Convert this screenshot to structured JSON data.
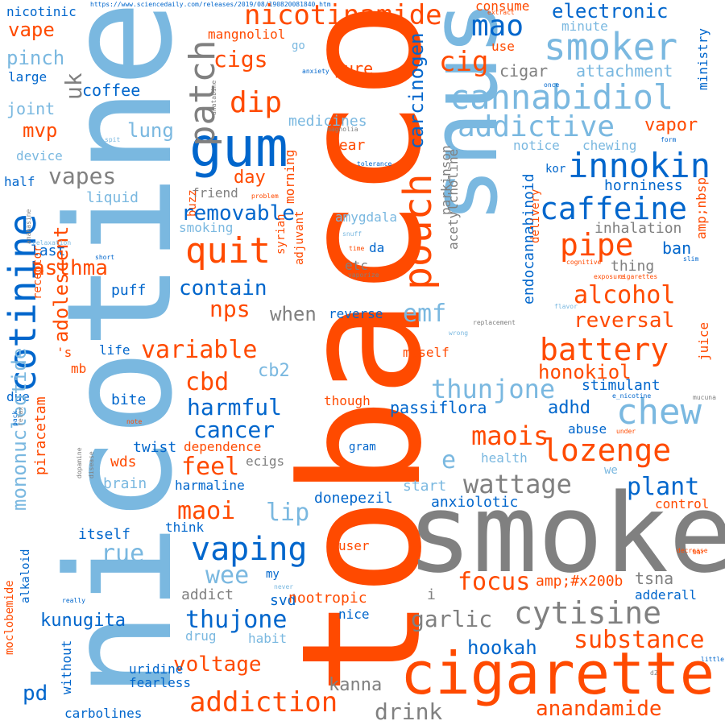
{
  "words": [
    {
      "text": "https://www.sciencedaily.com/releases/2019/08/190820081840.htm",
      "color": "#0066cc",
      "rotate": 0
    },
    {
      "text": "nicotine",
      "color": "#7ab8e0",
      "rotate": -90
    },
    {
      "text": "tobacco",
      "color": "#ff4a00",
      "rotate": -90
    },
    {
      "text": "smoke",
      "color": "#808080",
      "rotate": 0
    },
    {
      "text": "snus",
      "color": "#7ab8e0",
      "rotate": -90
    },
    {
      "text": "cigarette",
      "color": "#ff4a00",
      "rotate": 0
    },
    {
      "text": "gum",
      "color": "#0066cc",
      "rotate": 0
    },
    {
      "text": "nicotinamide",
      "color": "#ff4a00",
      "rotate": 0
    },
    {
      "text": "smoker",
      "color": "#7ab8e0",
      "rotate": 0
    },
    {
      "text": "cannabidiol",
      "color": "#7ab8e0",
      "rotate": 0
    },
    {
      "text": "addictive",
      "color": "#7ab8e0",
      "rotate": 0
    },
    {
      "text": "innokin",
      "color": "#0066cc",
      "rotate": 0
    },
    {
      "text": "caffeine",
      "color": "#0066cc",
      "rotate": 0
    },
    {
      "text": "pouch",
      "color": "#ff4a00",
      "rotate": -90
    },
    {
      "text": "cotinine",
      "color": "#0066cc",
      "rotate": -90
    },
    {
      "text": "pipe",
      "color": "#ff4a00",
      "rotate": 0
    },
    {
      "text": "quit",
      "color": "#ff4a00",
      "rotate": 0
    },
    {
      "text": "patch",
      "color": "#808080",
      "rotate": -90
    },
    {
      "text": "mao",
      "color": "#0066cc",
      "rotate": 0
    },
    {
      "text": "cig",
      "color": "#ff4a00",
      "rotate": 0
    },
    {
      "text": "dip",
      "color": "#ff4a00",
      "rotate": 0
    },
    {
      "text": "cigs",
      "color": "#ff4a00",
      "rotate": 0
    },
    {
      "text": "vape",
      "color": "#ff4a00",
      "rotate": 0
    },
    {
      "text": "nicotinic",
      "color": "#0066cc",
      "rotate": 0
    },
    {
      "text": "consume",
      "color": "#ff4a00",
      "rotate": 0
    },
    {
      "text": "electronic",
      "color": "#0066cc",
      "rotate": 0
    },
    {
      "text": "minute",
      "color": "#7ab8e0",
      "rotate": 0
    },
    {
      "text": "mangnoliol",
      "color": "#ff4a00",
      "rotate": 0
    },
    {
      "text": "carcinogen",
      "color": "#0066cc",
      "rotate": -90
    },
    {
      "text": "ministry",
      "color": "#0066cc",
      "rotate": -90
    },
    {
      "text": "attachment",
      "color": "#7ab8e0",
      "rotate": 0
    },
    {
      "text": "cigar",
      "color": "#808080",
      "rotate": 0
    },
    {
      "text": "pure",
      "color": "#ff4a00",
      "rotate": 0
    },
    {
      "text": "use",
      "color": "#ff4a00",
      "rotate": 0
    },
    {
      "text": "go",
      "color": "#7ab8e0",
      "rotate": 0
    },
    {
      "text": "pinch",
      "color": "#7ab8e0",
      "rotate": 0
    },
    {
      "text": "large",
      "color": "#0066cc",
      "rotate": 0
    },
    {
      "text": "uk",
      "color": "#808080",
      "rotate": -90
    },
    {
      "text": "coffee",
      "color": "#0066cc",
      "rotate": 0
    },
    {
      "text": "joint",
      "color": "#7ab8e0",
      "rotate": 0
    },
    {
      "text": "lung",
      "color": "#7ab8e0",
      "rotate": 0
    },
    {
      "text": "medicines",
      "color": "#7ab8e0",
      "rotate": 0
    },
    {
      "text": "parkinson",
      "color": "#808080",
      "rotate": -90
    },
    {
      "text": "vapor",
      "color": "#ff4a00",
      "rotate": 0
    },
    {
      "text": "notice",
      "color": "#7ab8e0",
      "rotate": 0
    },
    {
      "text": "chewing",
      "color": "#7ab8e0",
      "rotate": 0
    },
    {
      "text": "mvp",
      "color": "#ff4a00",
      "rotate": 0
    },
    {
      "text": "year",
      "color": "#ff4a00",
      "rotate": 0
    },
    {
      "text": "device",
      "color": "#7ab8e0",
      "rotate": 0
    },
    {
      "text": "vapes",
      "color": "#808080",
      "rotate": 0
    },
    {
      "text": "day",
      "color": "#ff4a00",
      "rotate": 0
    },
    {
      "text": "morning",
      "color": "#ff4a00",
      "rotate": -90
    },
    {
      "text": "endocannabinoid",
      "color": "#0066cc",
      "rotate": -90
    },
    {
      "text": "acetylcholine",
      "color": "#808080",
      "rotate": -90
    },
    {
      "text": "kor",
      "color": "#0066cc",
      "rotate": 0
    },
    {
      "text": "horniness",
      "color": "#0066cc",
      "rotate": 0
    },
    {
      "text": "half",
      "color": "#0066cc",
      "rotate": 0
    },
    {
      "text": "liquid",
      "color": "#7ab8e0",
      "rotate": 0
    },
    {
      "text": "friend",
      "color": "#808080",
      "rotate": 0
    },
    {
      "text": "buzz",
      "color": "#ff4a00",
      "rotate": -90
    },
    {
      "text": "removable",
      "color": "#0066cc",
      "rotate": 0
    },
    {
      "text": "amygdala",
      "color": "#7ab8e0",
      "rotate": 0
    },
    {
      "text": "smoking",
      "color": "#7ab8e0",
      "rotate": 0
    },
    {
      "text": "inhalation",
      "color": "#808080",
      "rotate": 0
    },
    {
      "text": "ban",
      "color": "#0066cc",
      "rotate": 0
    },
    {
      "text": "amp;nbsp",
      "color": "#ff4a00",
      "rotate": -90
    },
    {
      "text": "last",
      "color": "#0066cc",
      "rotate": 0
    },
    {
      "text": "asthma",
      "color": "#ff4a00",
      "rotate": 0
    },
    {
      "text": "receptor",
      "color": "#ff4a00",
      "rotate": -90
    },
    {
      "text": "syrian",
      "color": "#ff4a00",
      "rotate": -90
    },
    {
      "text": "adjuvant",
      "color": "#ff4a00",
      "rotate": -90
    },
    {
      "text": "etc",
      "color": "#808080",
      "rotate": 0
    },
    {
      "text": "da",
      "color": "#0066cc",
      "rotate": 0
    },
    {
      "text": "thing",
      "color": "#808080",
      "rotate": 0
    },
    {
      "text": "delivery",
      "color": "#ff4a00",
      "rotate": -90
    },
    {
      "text": "contain",
      "color": "#0066cc",
      "rotate": 0
    },
    {
      "text": "puff",
      "color": "#0066cc",
      "rotate": 0
    },
    {
      "text": "alcohol",
      "color": "#ff4a00",
      "rotate": 0
    },
    {
      "text": "nps",
      "color": "#ff4a00",
      "rotate": 0
    },
    {
      "text": "when",
      "color": "#808080",
      "rotate": 0
    },
    {
      "text": "reverse",
      "color": "#0066cc",
      "rotate": 0
    },
    {
      "text": "emf",
      "color": "#7ab8e0",
      "rotate": 0
    },
    {
      "text": "reversal",
      "color": "#ff4a00",
      "rotate": 0
    },
    {
      "text": "battery",
      "color": "#ff4a00",
      "rotate": 0
    },
    {
      "text": "variable",
      "color": "#ff4a00",
      "rotate": 0
    },
    {
      "text": "life",
      "color": "#0066cc",
      "rotate": 0
    },
    {
      "text": "'s",
      "color": "#ff4a00",
      "rotate": 0
    },
    {
      "text": "mb",
      "color": "#ff4a00",
      "rotate": 0
    },
    {
      "text": "myself",
      "color": "#ff4a00",
      "rotate": 0
    },
    {
      "text": "honokiol",
      "color": "#ff4a00",
      "rotate": 0
    },
    {
      "text": "juice",
      "color": "#ff4a00",
      "rotate": -90
    },
    {
      "text": "cb2",
      "color": "#7ab8e0",
      "rotate": 0
    },
    {
      "text": "cbd",
      "color": "#ff4a00",
      "rotate": 0
    },
    {
      "text": "thunjone",
      "color": "#7ab8e0",
      "rotate": 0
    },
    {
      "text": "stimulant",
      "color": "#0066cc",
      "rotate": 0
    },
    {
      "text": "chew",
      "color": "#7ab8e0",
      "rotate": 0
    },
    {
      "text": "due",
      "color": "#0066cc",
      "rotate": 0
    },
    {
      "text": "bite",
      "color": "#0066cc",
      "rotate": 0
    },
    {
      "text": "harmful",
      "color": "#0066cc",
      "rotate": 0
    },
    {
      "text": "though",
      "color": "#ff4a00",
      "rotate": 0
    },
    {
      "text": "passiflora",
      "color": "#0066cc",
      "rotate": 0
    },
    {
      "text": "adhd",
      "color": "#0066cc",
      "rotate": 0
    },
    {
      "text": "adolescent",
      "color": "#ff4a00",
      "rotate": -90
    },
    {
      "text": "cancer",
      "color": "#0066cc",
      "rotate": 0
    },
    {
      "text": "abuse",
      "color": "#0066cc",
      "rotate": 0
    },
    {
      "text": "maois",
      "color": "#ff4a00",
      "rotate": 0
    },
    {
      "text": "lozenge",
      "color": "#ff4a00",
      "rotate": 0
    },
    {
      "text": "twist",
      "color": "#0066cc",
      "rotate": 0
    },
    {
      "text": "dependence",
      "color": "#ff4a00",
      "rotate": 0
    },
    {
      "text": "mononucleotide",
      "color": "#7ab8e0",
      "rotate": -90
    },
    {
      "text": "piracetam",
      "color": "#ff4a00",
      "rotate": -90
    },
    {
      "text": "wds",
      "color": "#ff4a00",
      "rotate": 0
    },
    {
      "text": "feel",
      "color": "#ff4a00",
      "rotate": 0
    },
    {
      "text": "ecigs",
      "color": "#808080",
      "rotate": 0
    },
    {
      "text": "gram",
      "color": "#0066cc",
      "rotate": 0
    },
    {
      "text": "health",
      "color": "#7ab8e0",
      "rotate": 0
    },
    {
      "text": "e",
      "color": "#7ab8e0",
      "rotate": 0
    },
    {
      "text": "we",
      "color": "#7ab8e0",
      "rotate": 0
    },
    {
      "text": "wattage",
      "color": "#808080",
      "rotate": 0
    },
    {
      "text": "brain",
      "color": "#7ab8e0",
      "rotate": 0
    },
    {
      "text": "harmaline",
      "color": "#0066cc",
      "rotate": 0
    },
    {
      "text": "start",
      "color": "#7ab8e0",
      "rotate": 0
    },
    {
      "text": "plant",
      "color": "#0066cc",
      "rotate": 0
    },
    {
      "text": "donepezil",
      "color": "#0066cc",
      "rotate": 0
    },
    {
      "text": "anxiolotic",
      "color": "#0066cc",
      "rotate": 0
    },
    {
      "text": "control",
      "color": "#ff4a00",
      "rotate": 0
    },
    {
      "text": "maoi",
      "color": "#ff4a00",
      "rotate": 0
    },
    {
      "text": "lip",
      "color": "#7ab8e0",
      "rotate": 0
    },
    {
      "text": "think",
      "color": "#0066cc",
      "rotate": 0
    },
    {
      "text": "itself",
      "color": "#0066cc",
      "rotate": 0
    },
    {
      "text": "rue",
      "color": "#7ab8e0",
      "rotate": 0
    },
    {
      "text": "vaping",
      "color": "#0066cc",
      "rotate": 0
    },
    {
      "text": "user",
      "color": "#ff4a00",
      "rotate": 0
    },
    {
      "text": "wee",
      "color": "#7ab8e0",
      "rotate": 0
    },
    {
      "text": "my",
      "color": "#0066cc",
      "rotate": 0
    },
    {
      "text": "focus",
      "color": "#ff4a00",
      "rotate": 0
    },
    {
      "text": "amp;#x200b",
      "color": "#ff4a00",
      "rotate": 0
    },
    {
      "text": "tsna",
      "color": "#808080",
      "rotate": 0
    },
    {
      "text": "alkaloid",
      "color": "#0066cc",
      "rotate": -90
    },
    {
      "text": "moclobemide",
      "color": "#ff4a00",
      "rotate": -90
    },
    {
      "text": "addict",
      "color": "#808080",
      "rotate": 0
    },
    {
      "text": "svd",
      "color": "#0066cc",
      "rotate": 0
    },
    {
      "text": "nootropic",
      "color": "#ff4a00",
      "rotate": 0
    },
    {
      "text": "i",
      "color": "#808080",
      "rotate": 0
    },
    {
      "text": "adderall",
      "color": "#0066cc",
      "rotate": 0
    },
    {
      "text": "cytisine",
      "color": "#808080",
      "rotate": 0
    },
    {
      "text": "garlic",
      "color": "#808080",
      "rotate": 0
    },
    {
      "text": "kunugita",
      "color": "#0066cc",
      "rotate": 0
    },
    {
      "text": "thujone",
      "color": "#0066cc",
      "rotate": 0
    },
    {
      "text": "nice",
      "color": "#0066cc",
      "rotate": 0
    },
    {
      "text": "drug",
      "color": "#7ab8e0",
      "rotate": 0
    },
    {
      "text": "habit",
      "color": "#7ab8e0",
      "rotate": 0
    },
    {
      "text": "substance",
      "color": "#ff4a00",
      "rotate": 0
    },
    {
      "text": "hookah",
      "color": "#0066cc",
      "rotate": 0
    },
    {
      "text": "without",
      "color": "#0066cc",
      "rotate": -90
    },
    {
      "text": "voltage",
      "color": "#ff4a00",
      "rotate": 0
    },
    {
      "text": "uridine",
      "color": "#0066cc",
      "rotate": 0
    },
    {
      "text": "fearless",
      "color": "#0066cc",
      "rotate": 0
    },
    {
      "text": "pd",
      "color": "#0066cc",
      "rotate": 0
    },
    {
      "text": "kanna",
      "color": "#808080",
      "rotate": 0
    },
    {
      "text": "addiction",
      "color": "#ff4a00",
      "rotate": 0
    },
    {
      "text": "carbolines",
      "color": "#0066cc",
      "rotate": 0
    },
    {
      "text": "drink",
      "color": "#808080",
      "rotate": 0
    },
    {
      "text": "anandamide",
      "color": "#ff4a00",
      "rotate": 0
    },
    {
      "text": "extract",
      "color": "#ff4a00",
      "rotate": 0
    },
    {
      "text": "once",
      "color": "#0066cc",
      "rotate": 0
    },
    {
      "text": "form",
      "color": "#0066cc",
      "rotate": 0
    },
    {
      "text": "anxiety",
      "color": "#0066cc",
      "rotate": 0
    },
    {
      "text": "magnolia",
      "color": "#808080",
      "rotate": 0
    },
    {
      "text": "tolerance",
      "color": "#0066cc",
      "rotate": 0
    },
    {
      "text": "problem",
      "color": "#ff4a00",
      "rotate": 0
    },
    {
      "text": "snuff",
      "color": "#7ab8e0",
      "rotate": 0
    },
    {
      "text": "relaxation",
      "color": "#7ab8e0",
      "rotate": 0
    },
    {
      "text": "short",
      "color": "#0066cc",
      "rotate": 0
    },
    {
      "text": "time",
      "color": "#ff4a00",
      "rotate": 0
    },
    {
      "text": "vaporize",
      "color": "#808080",
      "rotate": 0
    },
    {
      "text": "slim",
      "color": "#0066cc",
      "rotate": 0
    },
    {
      "text": "cognitive",
      "color": "#ff4a00",
      "rotate": 0
    },
    {
      "text": "exposure",
      "color": "#ff4a00",
      "rotate": 0
    },
    {
      "text": "cigarettes",
      "color": "#ff4a00",
      "rotate": 0
    },
    {
      "text": "flavor",
      "color": "#7ab8e0",
      "rotate": 0
    },
    {
      "text": "replacement",
      "color": "#808080",
      "rotate": 0
    },
    {
      "text": "wrong",
      "color": "#7ab8e0",
      "rotate": 0
    },
    {
      "text": "e_nicotine",
      "color": "#0066cc",
      "rotate": 0
    },
    {
      "text": "mucuna",
      "color": "#808080",
      "rotate": 0
    },
    {
      "text": "note",
      "color": "#ff4a00",
      "rotate": 0
    },
    {
      "text": "under",
      "color": "#ff4a00",
      "rotate": 0
    },
    {
      "text": "decrease",
      "color": "#ff4a00",
      "rotate": 0
    },
    {
      "text": "really",
      "color": "#0066cc",
      "rotate": 0
    },
    {
      "text": "never",
      "color": "#7ab8e0",
      "rotate": 0
    },
    {
      "text": "little",
      "color": "#0066cc",
      "rotate": 0
    },
    {
      "text": "spit",
      "color": "#7ab8e0",
      "rotate": 0
    },
    {
      "text": "anabasine",
      "color": "#808080",
      "rotate": -90
    },
    {
      "text": "anatabine",
      "color": "#808080",
      "rotate": -90
    },
    {
      "text": "relax",
      "color": "#808080",
      "rotate": -90
    },
    {
      "text": "dopamine",
      "color": "#808080",
      "rotate": -90
    },
    {
      "text": "disease",
      "color": "#808080",
      "rotate": -90
    },
    {
      "text": "d2",
      "color": "#808080",
      "rotate": 0
    },
    {
      "text": "pack",
      "color": "#0066cc",
      "rotate": -90
    },
    {
      "text": "bar",
      "color": "#ff4a00",
      "rotate": 0
    }
  ]
}
